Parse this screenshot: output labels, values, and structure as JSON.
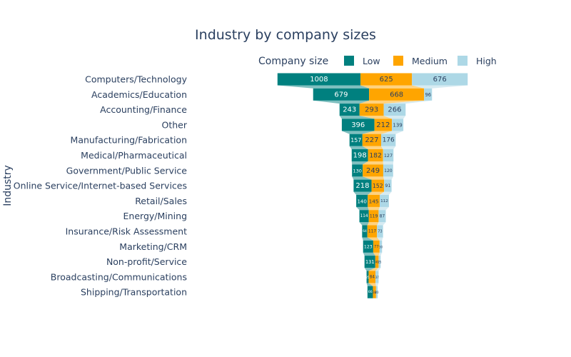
{
  "chart_data": {
    "type": "funnel",
    "title": "Industry by company sizes",
    "ylabel": "Industry",
    "legend": {
      "title": "Company size",
      "placement": "top-right",
      "orientation": "horizontal"
    },
    "categories": [
      "Computers/Technology",
      "Academics/Education",
      "Accounting/Finance",
      "Other",
      "Manufacturing/Fabrication",
      "Medical/Pharmaceutical",
      "Government/Public Service",
      "Online Service/Internet-based Services",
      "Retail/Sales",
      "Energy/Mining",
      "Insurance/Risk Assessment",
      "Marketing/CRM",
      "Non-profit/Service",
      "Broadcasting/Communications",
      "Shipping/Transportation"
    ],
    "series": [
      {
        "name": "Low",
        "color": "#00807f",
        "values": [
          1008,
          679,
          243,
          396,
          157,
          198,
          130,
          218,
          140,
          114,
          64,
          123,
          131,
          25,
          66
        ],
        "label_color": "#ffffff"
      },
      {
        "name": "Medium",
        "color": "#ffa500",
        "values": [
          625,
          668,
          293,
          212,
          227,
          182,
          249,
          152,
          145,
          119,
          117,
          77,
          40,
          84,
          38
        ],
        "label_color": "#2a3f5f"
      },
      {
        "name": "High",
        "color": "#add8e6",
        "values": [
          676,
          96,
          266,
          139,
          176,
          127,
          120,
          91,
          112,
          87,
          73,
          30,
          25,
          37,
          20
        ],
        "label_color": "#2a3f5f"
      }
    ]
  }
}
